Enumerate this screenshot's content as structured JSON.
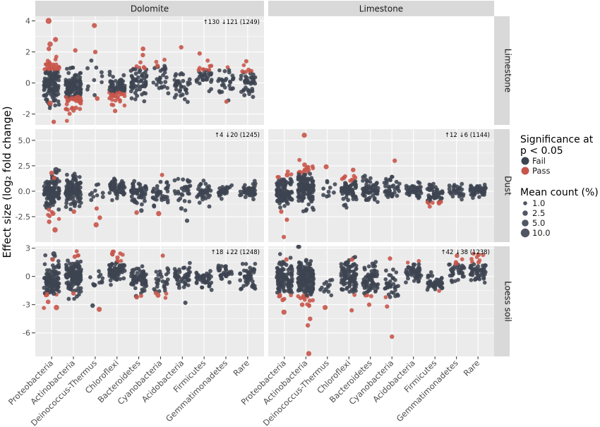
{
  "chart_data": {
    "type": "scatter",
    "ylabel": "Effect size (log₂ fold change)",
    "x_categories": [
      "Proteobacteria",
      "Actinobacteria",
      "Deinococcus-Thermus",
      "Chloroflexi",
      "Bacteroidetes",
      "Cyanobacteria",
      "Acidobacteria",
      "Firmicutes",
      "Gemmatimonadetes",
      "Rare"
    ],
    "facet_columns": [
      "Dolomite",
      "Limestone"
    ],
    "facet_rows": [
      "Limestone",
      "Dust",
      "Loess soil"
    ],
    "row_ylim": {
      "Limestone": [
        -2.7,
        4.3
      ],
      "Dust": [
        -5.0,
        6.1
      ],
      "Loess soil": [
        -8.5,
        3.2
      ]
    },
    "row_yticks": {
      "Limestone": [
        -2,
        0,
        2,
        4
      ],
      "Dust": [
        -2.5,
        0.0,
        2.5,
        5.0
      ],
      "Loess soil": [
        -6,
        -3,
        0,
        3
      ]
    },
    "row_ytick_labels": {
      "Limestone": [
        "-2",
        "0",
        "2",
        "4"
      ],
      "Dust": [
        "-2.5",
        "0.0",
        "2.5",
        "5.0"
      ],
      "Loess soil": [
        "-6",
        "-3",
        "0",
        "3"
      ]
    },
    "legend": {
      "significance_title": "Significance at\np < 0.05",
      "significance": [
        {
          "label": "Fail",
          "color": "#3d4451"
        },
        {
          "label": "Pass",
          "color": "#c8554a"
        }
      ],
      "size_title": "Mean count (%)",
      "sizes": [
        {
          "label": "1.0",
          "value": 1.0
        },
        {
          "label": "2.5",
          "value": 2.5
        },
        {
          "label": "5.0",
          "value": 5.0
        },
        {
          "label": "10.0",
          "value": 10.0
        }
      ],
      "position": "right"
    },
    "panels": [
      {
        "col": "Dolomite",
        "row": "Limestone",
        "empty": false,
        "annotation": "↑130 ↓121 (1249)",
        "groups": [
          {
            "n": 140,
            "center": 0.1,
            "spread": 0.75,
            "pass_threshold": 0.75,
            "extra_pass": [
              [
                4.0,
                3.0
              ],
              [
                2.5,
                2.2
              ],
              [
                2.8,
                1.8
              ],
              [
                -1.3,
                2.0
              ],
              [
                -2.5,
                1.2
              ],
              [
                2.2,
                1.4
              ]
            ]
          },
          {
            "n": 150,
            "center": -0.4,
            "spread": 0.6,
            "pass_threshold": -0.9,
            "extra_pass": [
              [
                -0.9,
                1.6
              ],
              [
                2.1,
                1.2
              ],
              [
                -1.6,
                1.2
              ]
            ]
          },
          {
            "n": 10,
            "center": 0.2,
            "spread": 0.6,
            "pass_threshold": 9,
            "extra_pass": [
              [
                3.7,
                1.8
              ],
              [
                2.0,
                1.2
              ],
              [
                -1.0,
                1.4
              ]
            ]
          },
          {
            "n": 85,
            "center": -0.4,
            "spread": 0.5,
            "pass_threshold": -0.6,
            "extra_pass": [
              [
                -1.8,
                1.2
              ]
            ]
          },
          {
            "n": 65,
            "center": 0.1,
            "spread": 0.6,
            "pass_threshold": 0.9,
            "extra_pass": [
              [
                2.2,
                1.4
              ],
              [
                1.8,
                1.2
              ]
            ]
          },
          {
            "n": 28,
            "center": 0.4,
            "spread": 0.6,
            "pass_threshold": 1.2,
            "extra_pass": [
              [
                1.1,
                1.4
              ]
            ]
          },
          {
            "n": 40,
            "center": -0.1,
            "spread": 0.5,
            "pass_threshold": 1.3,
            "extra_pass": [
              [
                2.3,
                1.2
              ]
            ]
          },
          {
            "n": 38,
            "center": 0.4,
            "spread": 0.55,
            "pass_threshold": 0.8,
            "extra_pass": [
              [
                1.9,
                1.1
              ]
            ]
          },
          {
            "n": 30,
            "center": 0.0,
            "spread": 0.5,
            "pass_threshold": 1.0,
            "extra_pass": [
              [
                -1.2,
                1.1
              ]
            ]
          },
          {
            "n": 45,
            "center": 0.0,
            "spread": 0.45,
            "pass_threshold": 0.7,
            "extra_pass": [
              [
                1.4,
                1.1
              ]
            ]
          }
        ]
      },
      {
        "col": "Limestone",
        "row": "Limestone",
        "empty": true,
        "annotation": "",
        "groups": []
      },
      {
        "col": "Dolomite",
        "row": "Dust",
        "empty": false,
        "annotation": "↑4 ↓20 (1245)",
        "groups": [
          {
            "n": 120,
            "center": -0.1,
            "spread": 0.9,
            "pass_threshold": -1.8,
            "extra_pass": [
              [
                -3.8,
                2.2
              ],
              [
                -2.2,
                1.5
              ],
              [
                1.8,
                1.4
              ],
              [
                -3.0,
                1.3
              ],
              [
                1.3,
                1.2
              ]
            ],
            "extra_fail": [
              [
                2.1,
                2.5
              ]
            ]
          },
          {
            "n": 110,
            "center": 0.0,
            "spread": 0.8,
            "pass_threshold": -1.9,
            "extra_pass": [
              [
                -2.0,
                1.3
              ]
            ]
          },
          {
            "n": 10,
            "center": -0.2,
            "spread": 0.5,
            "pass_threshold": -1.5,
            "extra_pass": [
              [
                -3.3,
                2.0
              ],
              [
                -2.6,
                1.3
              ],
              [
                -1.7,
                1.1
              ]
            ]
          },
          {
            "n": 55,
            "center": 0.3,
            "spread": 0.45,
            "pass_threshold": 9,
            "extra_pass": []
          },
          {
            "n": 60,
            "center": -0.1,
            "spread": 0.5,
            "pass_threshold": -1.8,
            "extra_pass": [
              [
                -2.1,
                1.4
              ]
            ],
            "extra_fail": [
              [
                -1.9,
                1.3
              ]
            ]
          },
          {
            "n": 35,
            "center": -0.3,
            "spread": 0.7,
            "pass_threshold": -1.5,
            "extra_pass": [
              [
                -2.2,
                2.0
              ],
              [
                1.6,
                1.0
              ]
            ]
          },
          {
            "n": 30,
            "center": 0.1,
            "spread": 0.7,
            "pass_threshold": 9,
            "extra_pass": [],
            "extra_fail": [
              [
                -1.7,
                1.2
              ],
              [
                -2.9,
                1.1
              ]
            ]
          },
          {
            "n": 35,
            "center": 0.0,
            "spread": 0.4,
            "pass_threshold": 9,
            "extra_pass": []
          },
          {
            "n": 25,
            "center": 0.0,
            "spread": 0.35,
            "pass_threshold": 9,
            "extra_pass": []
          },
          {
            "n": 45,
            "center": 0.05,
            "spread": 0.35,
            "pass_threshold": 9,
            "extra_pass": []
          }
        ]
      },
      {
        "col": "Limestone",
        "row": "Dust",
        "empty": false,
        "annotation": "↑12 ↓6 (1144)",
        "groups": [
          {
            "n": 100,
            "center": -0.1,
            "spread": 0.75,
            "pass_threshold": 1.3,
            "extra_pass": [
              [
                1.6,
                1.8
              ],
              [
                -2.0,
                1.2
              ],
              [
                -4.5,
                1.1
              ],
              [
                -2.8,
                1.1
              ]
            ]
          },
          {
            "n": 130,
            "center": 0.4,
            "spread": 0.9,
            "pass_threshold": 1.8,
            "extra_pass": [
              [
                5.5,
                1.9
              ],
              [
                2.6,
                1.5
              ],
              [
                2.3,
                1.3
              ]
            ]
          },
          {
            "n": 10,
            "center": 0.1,
            "spread": 0.6,
            "pass_threshold": 9,
            "extra_pass": [
              [
                2.4,
                1.8
              ]
            ]
          },
          {
            "n": 80,
            "center": 0.2,
            "spread": 0.6,
            "pass_threshold": 1.0,
            "extra_pass": [
              [
                2.1,
                1.3
              ]
            ]
          },
          {
            "n": 60,
            "center": 0.0,
            "spread": 0.6,
            "pass_threshold": 9,
            "extra_pass": [],
            "extra_fail": [
              [
                -0.8,
                1.8
              ]
            ]
          },
          {
            "n": 35,
            "center": 0.2,
            "spread": 0.6,
            "pass_threshold": 1.5,
            "extra_pass": [
              [
                3.0,
                1.2
              ]
            ]
          },
          {
            "n": 40,
            "center": 0.1,
            "spread": 0.4,
            "pass_threshold": 9,
            "extra_pass": []
          },
          {
            "n": 55,
            "center": -0.4,
            "spread": 0.55,
            "pass_threshold": -1.0,
            "extra_pass": [
              [
                -1.2,
                1.1
              ]
            ]
          },
          {
            "n": 30,
            "center": 0.1,
            "spread": 0.35,
            "pass_threshold": 9,
            "extra_pass": []
          },
          {
            "n": 50,
            "center": 0.05,
            "spread": 0.35,
            "pass_threshold": 9,
            "extra_pass": []
          }
        ]
      },
      {
        "col": "Dolomite",
        "row": "Loess soil",
        "empty": false,
        "annotation": "↑18 ↓22 (1248)",
        "groups": [
          {
            "n": 110,
            "center": -0.3,
            "spread": 0.9,
            "pass_threshold": -1.8,
            "extra_pass": [
              [
                -3.3,
                2.2
              ],
              [
                -2.7,
                1.4
              ],
              [
                1.8,
                1.2
              ]
            ],
            "extra_fail": [
              [
                2.4,
                2.0
              ],
              [
                -1.8,
                1.5
              ]
            ]
          },
          {
            "n": 140,
            "center": 0.0,
            "spread": 0.9,
            "pass_threshold": 1.9,
            "extra_pass": [
              [
                2.1,
                1.2
              ],
              [
                -1.8,
                1.2
              ]
            ]
          },
          {
            "n": 12,
            "center": 0.0,
            "spread": 0.7,
            "pass_threshold": 9,
            "extra_pass": [
              [
                -3.5,
                1.9
              ]
            ],
            "extra_fail": [
              [
                -3.1,
                1.3
              ]
            ]
          },
          {
            "n": 80,
            "center": 0.6,
            "spread": 0.7,
            "pass_threshold": 1.5,
            "extra_pass": [
              [
                2.4,
                1.3
              ],
              [
                2.0,
                1.2
              ]
            ]
          },
          {
            "n": 60,
            "center": -0.3,
            "spread": 0.7,
            "pass_threshold": -1.8,
            "extra_pass": [
              [
                -2.2,
                1.4
              ]
            ],
            "extra_fail": [
              [
                -2.1,
                1.3
              ]
            ]
          },
          {
            "n": 30,
            "center": -0.3,
            "spread": 0.7,
            "pass_threshold": -1.6,
            "extra_pass": [
              [
                -2.0,
                1.8
              ],
              [
                2.2,
                1.0
              ]
            ]
          },
          {
            "n": 45,
            "center": 0.0,
            "spread": 0.7,
            "pass_threshold": 9,
            "extra_pass": [],
            "extra_fail": [
              [
                -2.8,
                1.1
              ]
            ]
          },
          {
            "n": 45,
            "center": -0.3,
            "spread": 0.5,
            "pass_threshold": 9,
            "extra_pass": []
          },
          {
            "n": 30,
            "center": 0.3,
            "spread": 0.5,
            "pass_threshold": 9,
            "extra_pass": []
          },
          {
            "n": 55,
            "center": -0.1,
            "spread": 0.6,
            "pass_threshold": 9,
            "extra_pass": []
          }
        ]
      },
      {
        "col": "Limestone",
        "row": "Loess soil",
        "empty": false,
        "annotation": "↑42 ↓38 (1238)",
        "groups": [
          {
            "n": 110,
            "center": -0.2,
            "spread": 1.0,
            "pass_threshold": -1.8,
            "extra_pass": [
              [
                -3.8,
                2.0
              ],
              [
                1.8,
                1.2
              ],
              [
                -2.5,
                1.2
              ]
            ]
          },
          {
            "n": 170,
            "center": -0.3,
            "spread": 1.1,
            "pass_threshold": -2.0,
            "extra_pass": [
              [
                -8.2,
                1.9
              ],
              [
                -5.2,
                1.2
              ],
              [
                -4.5,
                1.3
              ],
              [
                -3.0,
                1.4
              ]
            ]
          },
          {
            "n": 12,
            "center": -0.6,
            "spread": 0.7,
            "pass_threshold": 9,
            "extra_pass": [
              [
                -3.3,
                1.8
              ]
            ],
            "extra_fail": [
              [
                -1.4,
                1.3
              ]
            ]
          },
          {
            "n": 95,
            "center": 0.0,
            "spread": 0.9,
            "pass_threshold": -1.7,
            "extra_pass": [
              [
                -3.6,
                1.1
              ],
              [
                1.8,
                1.2
              ]
            ]
          },
          {
            "n": 70,
            "center": -0.3,
            "spread": 0.8,
            "pass_threshold": -2.0,
            "extra_pass": [
              [
                -3.0,
                1.2
              ]
            ]
          },
          {
            "n": 35,
            "center": -0.7,
            "spread": 0.9,
            "pass_threshold": -2.2,
            "extra_pass": [
              [
                -6.4,
                1.2
              ],
              [
                1.9,
                1.2
              ],
              [
                -3.2,
                1.1
              ]
            ]
          },
          {
            "n": 50,
            "center": 0.5,
            "spread": 0.5,
            "pass_threshold": 1.3,
            "extra_pass": []
          },
          {
            "n": 50,
            "center": -0.7,
            "spread": 0.4,
            "pass_threshold": -1.5,
            "extra_pass": []
          },
          {
            "n": 40,
            "center": 0.6,
            "spread": 0.5,
            "pass_threshold": 1.3,
            "extra_pass": [
              [
                2.2,
                1.3
              ]
            ]
          },
          {
            "n": 55,
            "center": 0.5,
            "spread": 0.6,
            "pass_threshold": 1.4,
            "extra_pass": [
              [
                2.3,
                1.3
              ],
              [
                1.5,
                1.1
              ]
            ]
          }
        ]
      }
    ]
  }
}
